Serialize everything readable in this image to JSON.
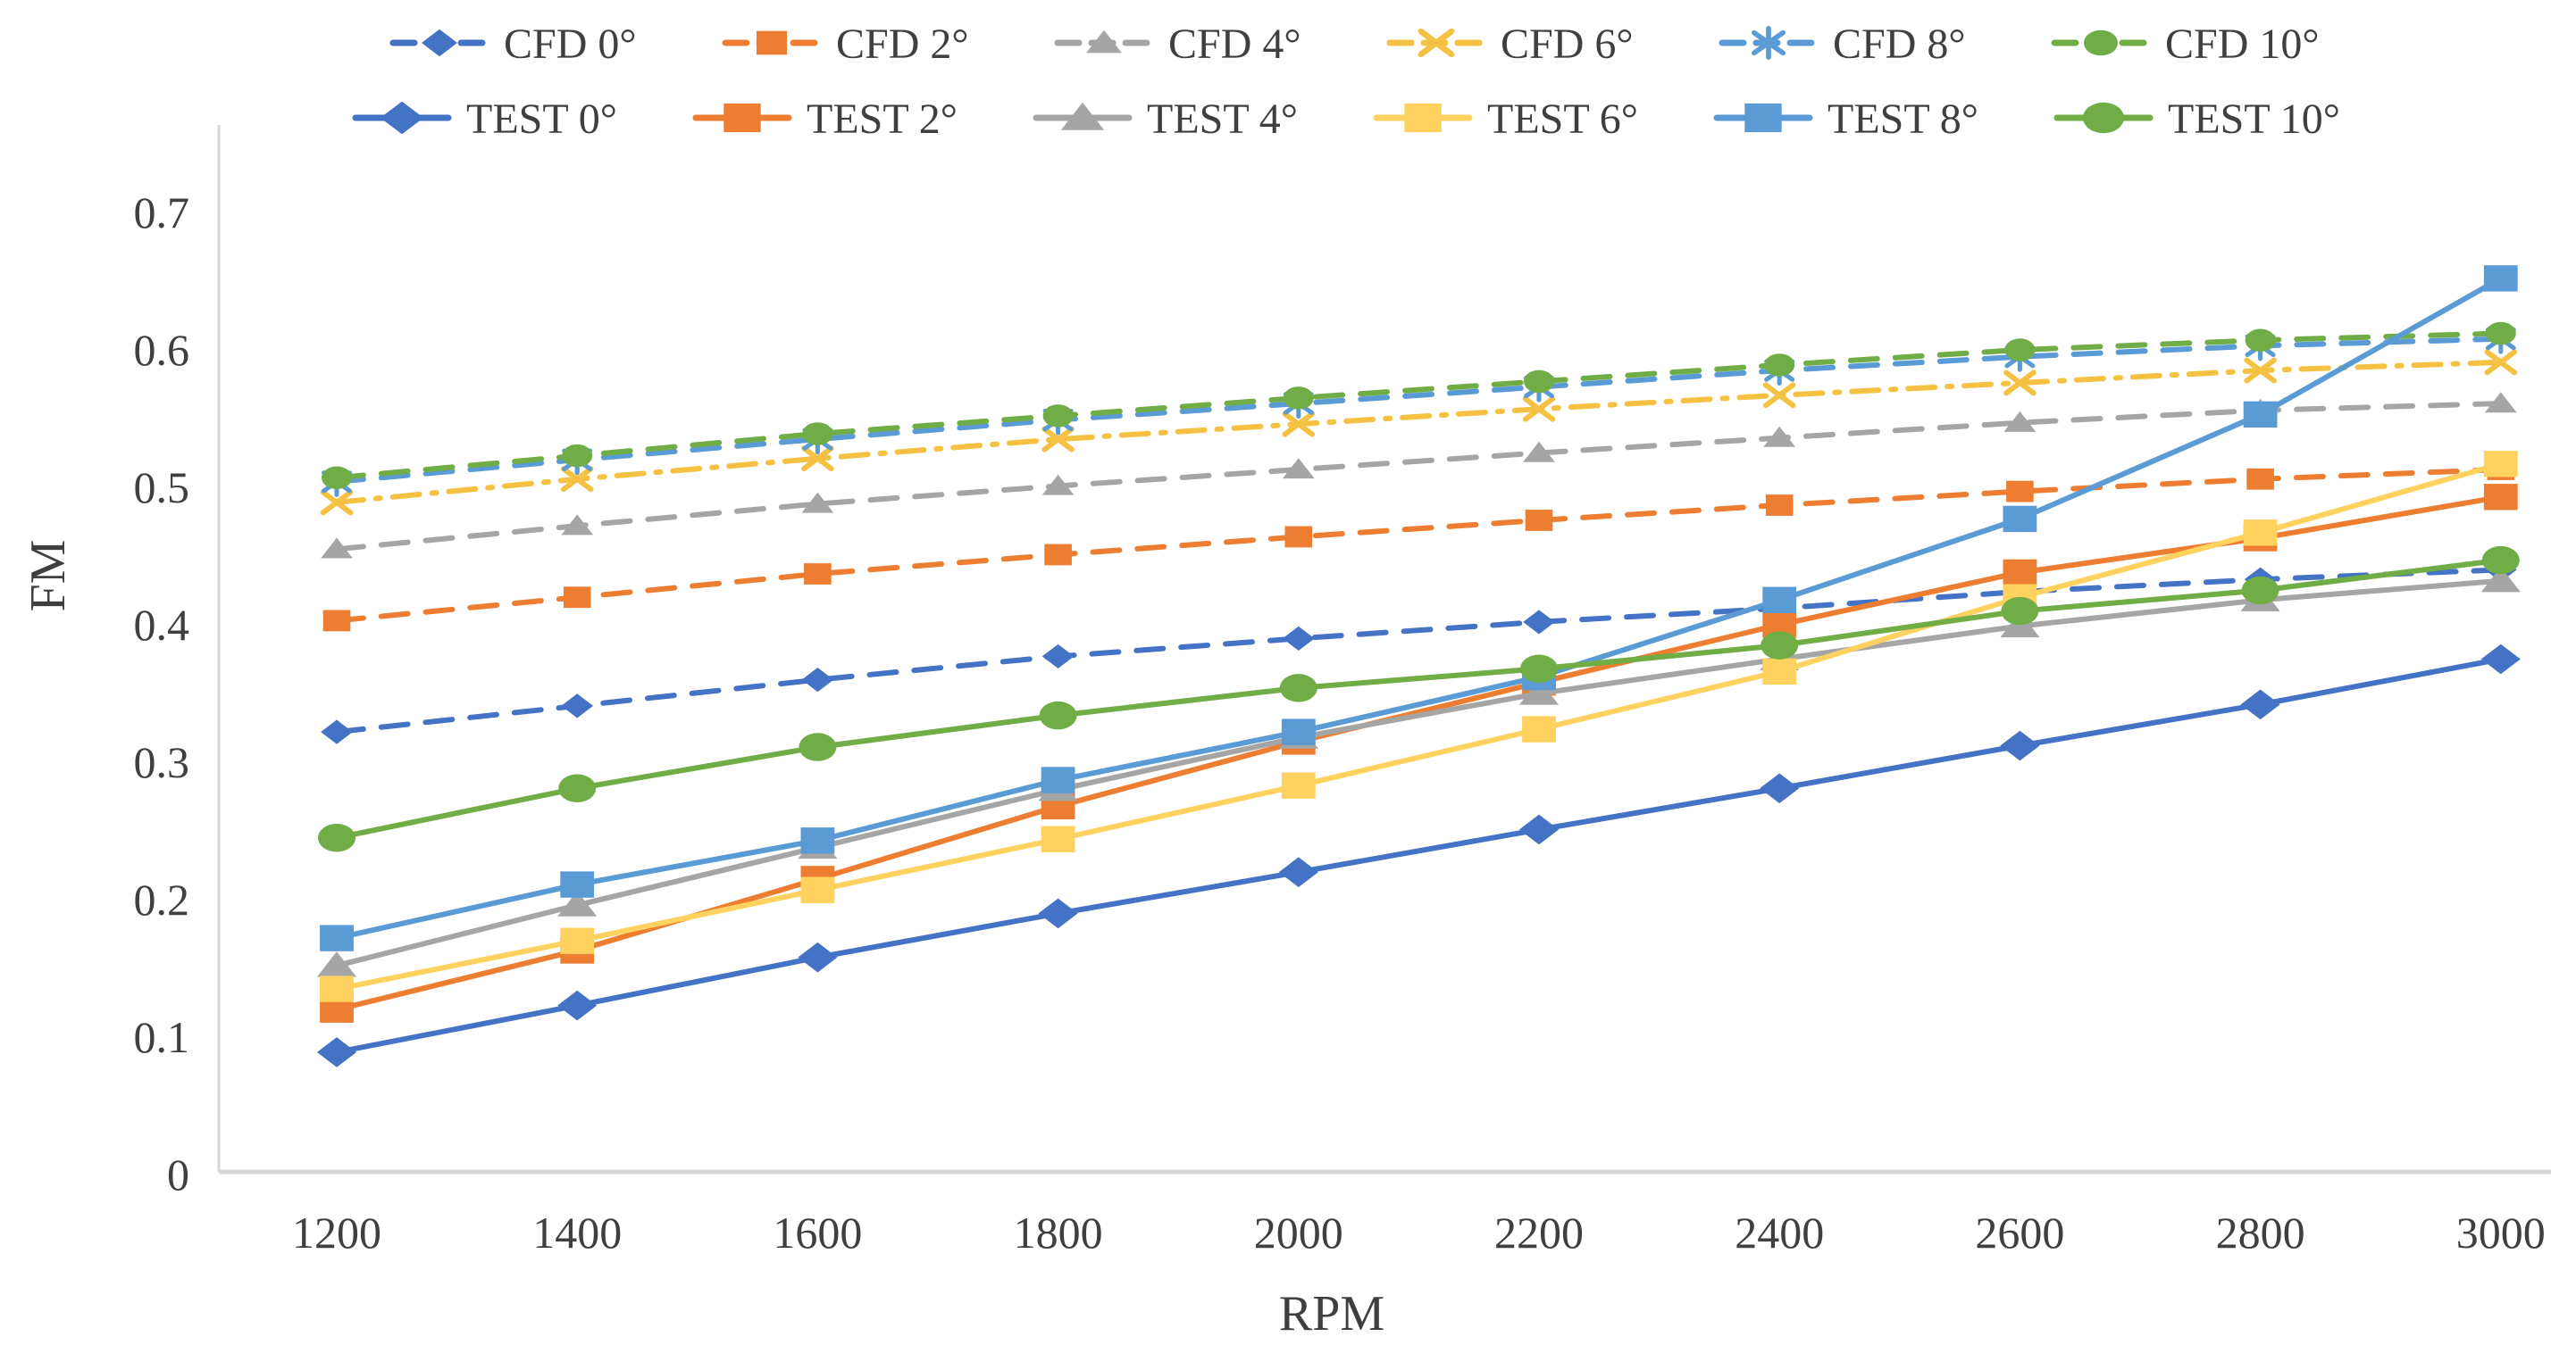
{
  "chart_data": {
    "type": "line",
    "title": "",
    "xlabel": "RPM",
    "ylabel": "FM",
    "x": [
      1200,
      1400,
      1600,
      1800,
      2000,
      2200,
      2400,
      2600,
      2800,
      3000
    ],
    "ylim": [
      0,
      0.7
    ],
    "ytick_step": 0.1,
    "grid": false,
    "legend_position": "top",
    "axis_color": "#d6d6d6",
    "text_color": "#3f3f3f",
    "series": [
      {
        "name": "CFD 0°",
        "color": "#4472C4",
        "style": "dashed",
        "marker": "diamond",
        "values": [
          0.322,
          0.341,
          0.36,
          0.377,
          0.39,
          0.402,
          0.412,
          0.424,
          0.433,
          0.44
        ]
      },
      {
        "name": "CFD 2°",
        "color": "#ED7D31",
        "style": "dashed",
        "marker": "square",
        "values": [
          0.403,
          0.42,
          0.437,
          0.451,
          0.464,
          0.476,
          0.487,
          0.497,
          0.506,
          0.513
        ]
      },
      {
        "name": "CFD 4°",
        "color": "#A5A5A5",
        "style": "dashed",
        "marker": "triangle",
        "values": [
          0.455,
          0.472,
          0.488,
          0.501,
          0.513,
          0.525,
          0.536,
          0.547,
          0.556,
          0.561
        ]
      },
      {
        "name": "CFD 6°",
        "color": "#F5C142",
        "style": "dashdot",
        "marker": "x",
        "values": [
          0.489,
          0.506,
          0.521,
          0.535,
          0.546,
          0.557,
          0.567,
          0.576,
          0.585,
          0.591
        ]
      },
      {
        "name": "CFD 8°",
        "color": "#5B9BD5",
        "style": "dashed",
        "marker": "asterisk",
        "values": [
          0.504,
          0.52,
          0.535,
          0.549,
          0.561,
          0.573,
          0.585,
          0.595,
          0.603,
          0.608
        ]
      },
      {
        "name": "CFD 10°",
        "color": "#70AD47",
        "style": "dashed",
        "marker": "circle",
        "values": [
          0.507,
          0.523,
          0.539,
          0.552,
          0.565,
          0.577,
          0.589,
          0.6,
          0.607,
          0.612
        ]
      },
      {
        "name": "TEST 0°",
        "color": "#4472C4",
        "style": "solid",
        "marker": "diamond",
        "values": [
          0.089,
          0.123,
          0.158,
          0.19,
          0.22,
          0.251,
          0.281,
          0.312,
          0.342,
          0.375
        ]
      },
      {
        "name": "TEST 2°",
        "color": "#ED7D31",
        "style": "solid",
        "marker": "square",
        "values": [
          0.12,
          0.163,
          0.215,
          0.268,
          0.315,
          0.358,
          0.4,
          0.438,
          0.463,
          0.493
        ]
      },
      {
        "name": "TEST 4°",
        "color": "#A5A5A5",
        "style": "solid",
        "marker": "triangle",
        "values": [
          0.152,
          0.196,
          0.238,
          0.28,
          0.318,
          0.35,
          0.375,
          0.399,
          0.418,
          0.432
        ]
      },
      {
        "name": "TEST 6°",
        "color": "#FFD15F",
        "style": "solid",
        "marker": "square",
        "values": [
          0.135,
          0.17,
          0.207,
          0.244,
          0.283,
          0.324,
          0.366,
          0.42,
          0.467,
          0.517
        ]
      },
      {
        "name": "TEST 8°",
        "color": "#5B9BD5",
        "style": "solid",
        "marker": "square",
        "values": [
          0.172,
          0.211,
          0.243,
          0.287,
          0.322,
          0.362,
          0.418,
          0.477,
          0.553,
          0.652
        ]
      },
      {
        "name": "TEST 10°",
        "color": "#70AD47",
        "style": "solid",
        "marker": "circle",
        "values": [
          0.245,
          0.281,
          0.311,
          0.334,
          0.354,
          0.368,
          0.385,
          0.41,
          0.425,
          0.447
        ]
      }
    ]
  }
}
